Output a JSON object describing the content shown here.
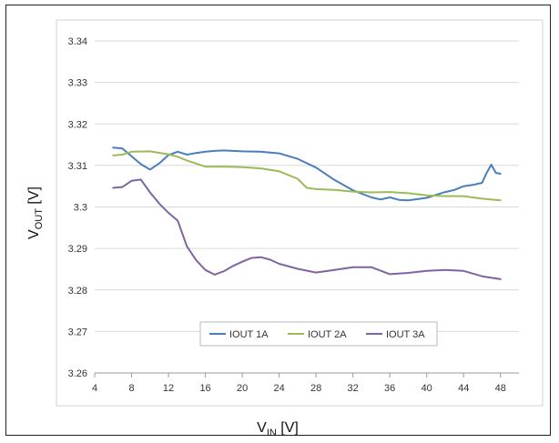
{
  "chart_data": {
    "type": "line",
    "title": "",
    "xlabel": {
      "main": "V",
      "sub": "IN",
      "unit": " [V]"
    },
    "ylabel": {
      "main": "V",
      "sub": "OUT",
      "unit": " [V]"
    },
    "xlim": [
      4,
      50
    ],
    "ylim": [
      3.26,
      3.34
    ],
    "xticks": [
      "4",
      "8",
      "12",
      "16",
      "20",
      "24",
      "28",
      "32",
      "36",
      "40",
      "44",
      "48"
    ],
    "yticks": [
      "3.26",
      "3.27",
      "3.28",
      "3.29",
      "3.3",
      "3.31",
      "3.32",
      "3.33",
      "3.34"
    ],
    "grid": "horizontal",
    "legend_position": "bottom-center",
    "series": [
      {
        "name": "IOUT 1A",
        "color": "#4a7ebb",
        "x": [
          6,
          7,
          8,
          9,
          10,
          11,
          12,
          13,
          14,
          15,
          16,
          17,
          18,
          20,
          22,
          24,
          26,
          28,
          30,
          32,
          34,
          35,
          36,
          37,
          38,
          40,
          42,
          43,
          44,
          45,
          46,
          46.5,
          47,
          47.5,
          48
        ],
        "y": [
          3.3143,
          3.3141,
          3.3122,
          3.3103,
          3.309,
          3.3105,
          3.3125,
          3.3133,
          3.3126,
          3.313,
          3.3133,
          3.3135,
          3.3136,
          3.3134,
          3.3133,
          3.3129,
          3.3116,
          3.3095,
          3.3065,
          3.304,
          3.3023,
          3.3018,
          3.3023,
          3.3017,
          3.3016,
          3.3022,
          3.3036,
          3.3041,
          3.305,
          3.3053,
          3.3058,
          3.3082,
          3.3102,
          3.3082,
          3.308
        ]
      },
      {
        "name": "IOUT 2A",
        "color": "#9bbb59",
        "x": [
          6,
          7,
          8,
          10,
          12,
          13,
          14,
          16,
          18,
          20,
          22,
          24,
          26,
          27,
          28,
          30,
          32,
          34,
          36,
          38,
          40,
          42,
          44,
          46,
          48
        ],
        "y": [
          3.3124,
          3.3126,
          3.3133,
          3.3134,
          3.3127,
          3.3121,
          3.3112,
          3.3097,
          3.3097,
          3.3096,
          3.3093,
          3.3086,
          3.3068,
          3.3046,
          3.3043,
          3.3041,
          3.3037,
          3.3035,
          3.3036,
          3.3033,
          3.3028,
          3.3026,
          3.3026,
          3.302,
          3.3016
        ]
      },
      {
        "name": "IOUT 3A",
        "color": "#8064a2",
        "x": [
          6,
          7,
          8,
          9,
          10,
          11,
          12,
          13,
          14,
          15,
          16,
          17,
          18,
          19,
          20,
          21,
          22,
          23,
          24,
          26,
          28,
          30,
          32,
          34,
          36,
          38,
          40,
          42,
          44,
          46,
          48
        ],
        "y": [
          3.3046,
          3.3048,
          3.3063,
          3.3066,
          3.3035,
          3.3008,
          3.2986,
          3.2967,
          3.2905,
          3.2872,
          3.2848,
          3.2837,
          3.2845,
          3.2858,
          3.2868,
          3.2877,
          3.2879,
          3.2873,
          3.2863,
          3.2851,
          3.2842,
          3.2848,
          3.2855,
          3.2855,
          3.2838,
          3.2841,
          3.2846,
          3.2848,
          3.2846,
          3.2833,
          3.2826
        ]
      }
    ]
  }
}
